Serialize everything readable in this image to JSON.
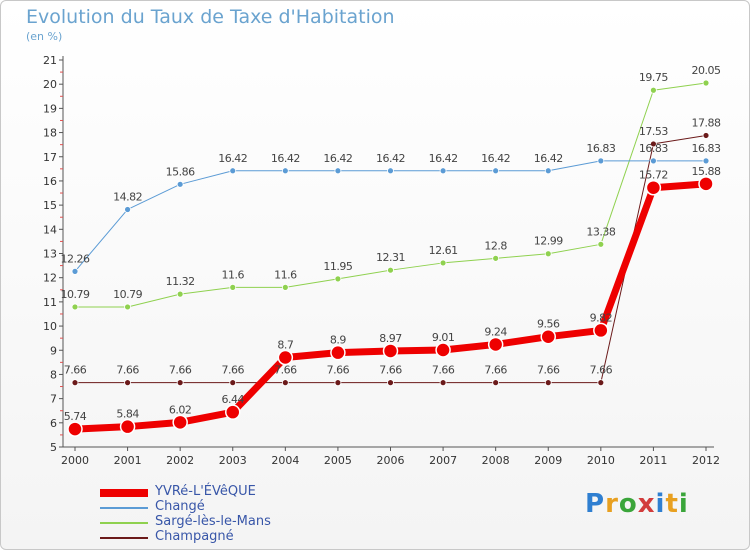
{
  "title": "Evolution du Taux de Taxe d'Habitation",
  "subtitle": "(en %)",
  "logo": "Proxiti",
  "chart_data": {
    "type": "line",
    "title": "Evolution du Taux de Taxe d'Habitation",
    "subtitle": "(en %)",
    "xlabel": "",
    "ylabel": "",
    "ylim": [
      5,
      21
    ],
    "yticks": [
      5,
      6,
      7,
      8,
      9,
      10,
      11,
      12,
      13,
      14,
      15,
      16,
      17,
      18,
      19,
      20,
      21
    ],
    "grid": false,
    "legend_position": "bottom-left",
    "x": [
      "2000",
      "2001",
      "2002",
      "2003",
      "2004",
      "2005",
      "2006",
      "2007",
      "2008",
      "2009",
      "2010",
      "2011",
      "2012"
    ],
    "series": [
      {
        "name": "Champagné",
        "color": "#6b1a1a",
        "width": 1,
        "values": [
          7.66,
          7.66,
          7.66,
          7.66,
          7.66,
          7.66,
          7.66,
          7.66,
          7.66,
          7.66,
          7.66,
          17.53,
          17.88
        ],
        "labels": [
          "7.66",
          "7.66",
          "7.66",
          "7.66",
          "7.66",
          "7.66",
          "7.66",
          "7.66",
          "7.66",
          "7.66",
          "7.66",
          "17.53",
          "17.88"
        ]
      },
      {
        "name": "Sargé-lès-le-Mans",
        "color": "#8fd14f",
        "width": 1,
        "values": [
          10.79,
          10.79,
          11.32,
          11.6,
          11.6,
          11.95,
          12.31,
          12.61,
          12.8,
          12.99,
          13.38,
          19.75,
          20.05
        ],
        "labels": [
          "10.79",
          "10.79",
          "11.32",
          "11.6",
          "11.6",
          "11.95",
          "12.31",
          "12.61",
          "12.8",
          "12.99",
          "13.38",
          "19.75",
          "20.05"
        ]
      },
      {
        "name": "Changé",
        "color": "#5b9bd5",
        "width": 1,
        "values": [
          12.26,
          14.82,
          15.86,
          16.42,
          16.42,
          16.42,
          16.42,
          16.42,
          16.42,
          16.42,
          16.83,
          16.83,
          16.83
        ],
        "labels": [
          "12.26",
          "14.82",
          "15.86",
          "16.42",
          "16.42",
          "16.42",
          "16.42",
          "16.42",
          "16.42",
          "16.42",
          "16.83",
          "16.83",
          "16.83"
        ]
      },
      {
        "name": "YVRé-L'ÉVêQUE",
        "color": "#ee0000",
        "width": 7,
        "values": [
          5.74,
          5.84,
          6.02,
          6.44,
          8.7,
          8.9,
          8.97,
          9.01,
          9.24,
          9.56,
          9.82,
          15.72,
          15.88
        ],
        "labels": [
          "5.74",
          "5.84",
          "6.02",
          "6.44",
          "8.7",
          "8.9",
          "8.97",
          "9.01",
          "9.24",
          "9.56",
          "9.82",
          "15.72",
          "15.88"
        ]
      }
    ],
    "legend_order": [
      "YVRé-L'ÉVêQUE",
      "Changé",
      "Sargé-lès-le-Mans",
      "Champagné"
    ]
  }
}
